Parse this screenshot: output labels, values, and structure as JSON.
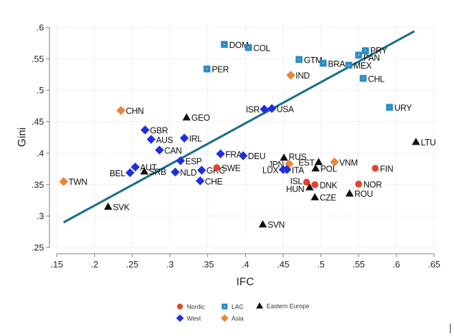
{
  "colors": {
    "Nordic": "#e8412c",
    "West": "#1f2fe0",
    "LAC": "#2a8cc4",
    "Eastern Europe": "#111111",
    "Asia": "#ee8434",
    "fit_line": "#1f6f8b",
    "grid": "#e4e4e4",
    "axis": "#999999"
  },
  "chart_data": {
    "type": "scatter",
    "title": "",
    "xlabel": "IFC",
    "ylabel": "Gini",
    "xlim": [
      0.15,
      0.65
    ],
    "ylim": [
      0.25,
      0.6
    ],
    "xticks": [
      0.15,
      0.2,
      0.25,
      0.3,
      0.35,
      0.4,
      0.45,
      0.5,
      0.55,
      0.6,
      0.65
    ],
    "xtick_labels": [
      ".15",
      ".2",
      ".25",
      ".3",
      ".35",
      ".4",
      ".45",
      ".5",
      ".55",
      ".6",
      ".65"
    ],
    "yticks": [
      0.25,
      0.3,
      0.35,
      0.4,
      0.45,
      0.5,
      0.55,
      0.6
    ],
    "ytick_labels": [
      ".25",
      ".3",
      ".35",
      ".4",
      ".45",
      ".5",
      ".55",
      ".6"
    ],
    "grid": true,
    "legend_placement": "bottom-center",
    "legend": [
      {
        "name": "Nordic",
        "marker": "circle"
      },
      {
        "name": "LAC",
        "marker": "square"
      },
      {
        "name": "Eastern Europe",
        "marker": "triangle"
      },
      {
        "name": "West",
        "marker": "diamond"
      },
      {
        "name": "Asia",
        "marker": "diamond"
      }
    ],
    "fit_line": {
      "x": [
        0.159,
        0.624
      ],
      "y": [
        0.29,
        0.594
      ]
    },
    "points": [
      {
        "label": "TWN",
        "group": "Asia",
        "x": 0.159,
        "y": 0.355
      },
      {
        "label": "CHN",
        "group": "Asia",
        "x": 0.235,
        "y": 0.468
      },
      {
        "label": "IND",
        "group": "Asia",
        "x": 0.46,
        "y": 0.524
      },
      {
        "label": "JPN",
        "group": "Asia",
        "x": 0.458,
        "y": 0.383
      },
      {
        "label": "VNM",
        "group": "Asia",
        "x": 0.518,
        "y": 0.386
      },
      {
        "label": "GBR",
        "group": "West",
        "x": 0.267,
        "y": 0.437
      },
      {
        "label": "AUS",
        "group": "West",
        "x": 0.275,
        "y": 0.422
      },
      {
        "label": "IRL",
        "group": "West",
        "x": 0.319,
        "y": 0.424
      },
      {
        "label": "CAN",
        "group": "West",
        "x": 0.286,
        "y": 0.405
      },
      {
        "label": "ESP",
        "group": "West",
        "x": 0.314,
        "y": 0.388
      },
      {
        "label": "BEL",
        "group": "West",
        "x": 0.247,
        "y": 0.369
      },
      {
        "label": "AUT",
        "group": "West",
        "x": 0.254,
        "y": 0.378
      },
      {
        "label": "NLD",
        "group": "West",
        "x": 0.307,
        "y": 0.37
      },
      {
        "label": "GRC",
        "group": "West",
        "x": 0.342,
        "y": 0.373
      },
      {
        "label": "CHE",
        "group": "West",
        "x": 0.34,
        "y": 0.356
      },
      {
        "label": "FRA",
        "group": "West",
        "x": 0.367,
        "y": 0.399
      },
      {
        "label": "DEU",
        "group": "West",
        "x": 0.397,
        "y": 0.396
      },
      {
        "label": "ISR",
        "group": "West",
        "x": 0.425,
        "y": 0.47
      },
      {
        "label": "USA",
        "group": "West",
        "x": 0.435,
        "y": 0.471
      },
      {
        "label": "LUX",
        "group": "West",
        "x": 0.45,
        "y": 0.374
      },
      {
        "label": "ITA",
        "group": "West",
        "x": 0.455,
        "y": 0.374
      },
      {
        "label": "SWE",
        "group": "Nordic",
        "x": 0.362,
        "y": 0.377
      },
      {
        "label": "FIN",
        "group": "Nordic",
        "x": 0.572,
        "y": 0.376
      },
      {
        "label": "ISL",
        "group": "Nordic",
        "x": 0.481,
        "y": 0.354
      },
      {
        "label": "DNK",
        "group": "Nordic",
        "x": 0.492,
        "y": 0.35
      },
      {
        "label": "NOR",
        "group": "Nordic",
        "x": 0.55,
        "y": 0.351
      },
      {
        "label": "PER",
        "group": "LAC",
        "x": 0.349,
        "y": 0.534
      },
      {
        "label": "DOM",
        "group": "LAC",
        "x": 0.372,
        "y": 0.573
      },
      {
        "label": "COL",
        "group": "LAC",
        "x": 0.404,
        "y": 0.568
      },
      {
        "label": "GTM",
        "group": "LAC",
        "x": 0.471,
        "y": 0.549
      },
      {
        "label": "BRA",
        "group": "LAC",
        "x": 0.503,
        "y": 0.543
      },
      {
        "label": "MEX",
        "group": "LAC",
        "x": 0.537,
        "y": 0.54
      },
      {
        "label": "PAN",
        "group": "LAC",
        "x": 0.55,
        "y": 0.556
      },
      {
        "label": "PRY",
        "group": "LAC",
        "x": 0.559,
        "y": 0.563
      },
      {
        "label": "CHL",
        "group": "LAC",
        "x": 0.556,
        "y": 0.519
      },
      {
        "label": "URY",
        "group": "LAC",
        "x": 0.591,
        "y": 0.473
      },
      {
        "label": "SVK",
        "group": "Eastern Europe",
        "x": 0.218,
        "y": 0.315
      },
      {
        "label": "GEO",
        "group": "Eastern Europe",
        "x": 0.322,
        "y": 0.457
      },
      {
        "label": "SRB",
        "group": "Eastern Europe",
        "x": 0.266,
        "y": 0.371
      },
      {
        "label": "SVN",
        "group": "Eastern Europe",
        "x": 0.423,
        "y": 0.287
      },
      {
        "label": "RUS",
        "group": "Eastern Europe",
        "x": 0.451,
        "y": 0.393
      },
      {
        "label": "EST",
        "group": "Eastern Europe",
        "x": 0.497,
        "y": 0.386
      },
      {
        "label": "POL",
        "group": "Eastern Europe",
        "x": 0.493,
        "y": 0.376
      },
      {
        "label": "HUN",
        "group": "Eastern Europe",
        "x": 0.485,
        "y": 0.346
      },
      {
        "label": "CZE",
        "group": "Eastern Europe",
        "x": 0.492,
        "y": 0.33
      },
      {
        "label": "ROU",
        "group": "Eastern Europe",
        "x": 0.538,
        "y": 0.336
      },
      {
        "label": "LTU",
        "group": "Eastern Europe",
        "x": 0.626,
        "y": 0.418
      }
    ]
  }
}
